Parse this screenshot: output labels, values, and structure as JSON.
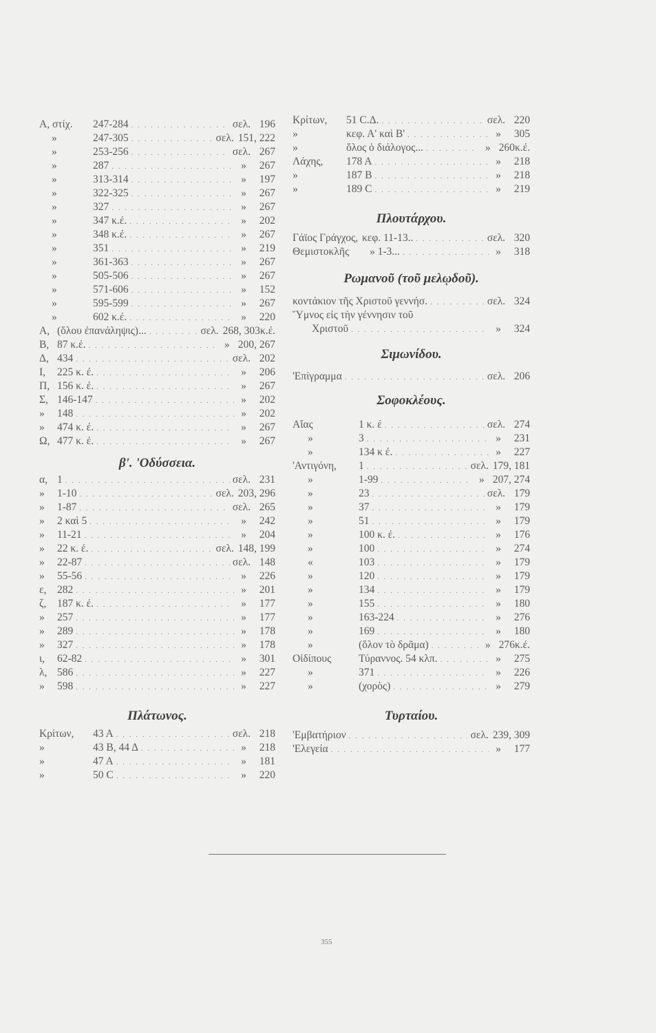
{
  "page_number": "355",
  "left": [
    {
      "heading": "",
      "rows": [
        {
          "p": "Α, στίχ.",
          "t": "247-284",
          "s": "σελ.",
          "n": "196"
        },
        {
          "p": "»",
          "t": "247-305",
          "s": "σελ.",
          "n": "151, 222"
        },
        {
          "p": "»",
          "t": "253-256",
          "s": "σελ.",
          "n": "267"
        },
        {
          "p": "»",
          "t": "287",
          "s": "»",
          "n": "267"
        },
        {
          "p": "»",
          "t": "313-314",
          "s": "»",
          "n": "197"
        },
        {
          "p": "»",
          "t": "322-325",
          "s": "»",
          "n": "267"
        },
        {
          "p": "»",
          "t": "327",
          "s": "»",
          "n": "267"
        },
        {
          "p": "»",
          "t": "347 κ.έ.",
          "s": "»",
          "n": "202"
        },
        {
          "p": "»",
          "t": "348 κ.έ.",
          "s": "»",
          "n": "267"
        },
        {
          "p": "»",
          "t": "351",
          "s": "»",
          "n": "219"
        },
        {
          "p": "»",
          "t": "361-363",
          "s": "»",
          "n": "267"
        },
        {
          "p": "»",
          "t": "505-506",
          "s": "»",
          "n": "267"
        },
        {
          "p": "»",
          "t": "571-606",
          "s": "»",
          "n": "152"
        },
        {
          "p": "»",
          "t": "595-599",
          "s": "»",
          "n": "267"
        },
        {
          "p": "»",
          "t": "602 κ.έ.",
          "s": "»",
          "n": "220"
        }
      ]
    },
    {
      "heading": "",
      "rows": [
        {
          "p": "Α,",
          "t": "(ὅλου ἐπανάληψις)...",
          "s": "σελ.",
          "n": "268, 303κ.έ."
        },
        {
          "p": "Β,",
          "t": "87 κ.έ.",
          "s": "»",
          "n": "200, 267"
        },
        {
          "p": "Δ,",
          "t": "434",
          "s": "σελ.",
          "n": "202"
        },
        {
          "p": "Ι,",
          "t": "225 κ. έ.",
          "s": "»",
          "n": "206"
        },
        {
          "p": "Π,",
          "t": "156 κ. έ.",
          "s": "»",
          "n": "267"
        },
        {
          "p": "Σ,",
          "t": "146-147",
          "s": "»",
          "n": "202"
        },
        {
          "p": "»",
          "t": "148",
          "s": "»",
          "n": "202"
        },
        {
          "p": "»",
          "t": "474 κ. έ.",
          "s": "»",
          "n": "267"
        },
        {
          "p": "Ω,",
          "t": "477 κ. έ.",
          "s": "»",
          "n": "267"
        }
      ]
    },
    {
      "heading": "β'. 'Οδύσσεια.",
      "rows": [
        {
          "p": "α,",
          "t": "1",
          "s": "σελ.",
          "n": "231"
        },
        {
          "p": "»",
          "t": "1-10",
          "s": "σελ.",
          "n": "203, 296"
        },
        {
          "p": "»",
          "t": "1-87",
          "s": "σελ.",
          "n": "265"
        },
        {
          "p": "»",
          "t": "2 καὶ 5",
          "s": "»",
          "n": "242"
        },
        {
          "p": "»",
          "t": "11-21",
          "s": "»",
          "n": "204"
        },
        {
          "p": "»",
          "t": "22 κ. έ.",
          "s": "σελ.",
          "n": "148, 199"
        },
        {
          "p": "»",
          "t": "22-87",
          "s": "σελ.",
          "n": "148"
        },
        {
          "p": "»",
          "t": "55-56",
          "s": "»",
          "n": "226"
        },
        {
          "p": "ε,",
          "t": "282",
          "s": "»",
          "n": "201"
        },
        {
          "p": "ζ,",
          "t": "187 κ. έ.",
          "s": "»",
          "n": "177"
        },
        {
          "p": "»",
          "t": "257",
          "s": "»",
          "n": "177"
        },
        {
          "p": "»",
          "t": "289",
          "s": "»",
          "n": "178"
        },
        {
          "p": "»",
          "t": "327",
          "s": "»",
          "n": "178"
        },
        {
          "p": "ι,",
          "t": "62-82",
          "s": "»",
          "n": "301"
        },
        {
          "p": "λ,",
          "t": "586",
          "s": "»",
          "n": "227"
        },
        {
          "p": "»",
          "t": "598",
          "s": "»",
          "n": "227"
        }
      ]
    },
    {
      "heading": "Πλάτωνος.",
      "rows": [
        {
          "p": "Κρίτων,",
          "t": "43 Α",
          "s": "σελ.",
          "n": "218"
        },
        {
          "p": "»",
          "t": "43 Β, 44 Δ",
          "s": "»",
          "n": "218"
        },
        {
          "p": "»",
          "t": "47 Α",
          "s": "»",
          "n": "181"
        },
        {
          "p": "»",
          "t": "50 C",
          "s": "»",
          "n": "220"
        }
      ]
    }
  ],
  "right": [
    {
      "heading": "",
      "rows": [
        {
          "p": "Κρίτων,",
          "t": "51 C.Δ.",
          "s": "σελ.",
          "n": "220"
        },
        {
          "p": "»",
          "t": "κεφ. Α' καὶ Β'",
          "s": "»",
          "n": "305"
        },
        {
          "p": "»",
          "t": "ὅλος ὁ διάλογος...",
          "s": "»",
          "n": "260κ.έ."
        },
        {
          "p": "Λάχης,",
          "t": "178 Α",
          "s": "»",
          "n": "218"
        },
        {
          "p": "»",
          "t": "187 Β",
          "s": "»",
          "n": "218"
        },
        {
          "p": "»",
          "t": "189 C",
          "s": "»",
          "n": "219"
        }
      ]
    },
    {
      "heading": "Πλουτάρχου.",
      "rows": [
        {
          "p": "Γάϊος Γράγχος,",
          "t": "κεφ. 11-13..",
          "s": "σελ.",
          "n": "320"
        },
        {
          "p": "Θεμιστοκλῆς",
          "t": "» 1-3...",
          "s": "»",
          "n": "318"
        }
      ]
    },
    {
      "heading": "Ρωμανοῦ (τοῦ μελῳδοῦ).",
      "rows": [
        {
          "p": "",
          "t": "κοντάκιον τῆς Χριστοῦ γεννήσ.",
          "s": "σελ.",
          "n": "324"
        },
        {
          "p": "",
          "t": "Ὕμνος εἰς τὴν γέννησιν τοῦ",
          "s": "",
          "n": ""
        },
        {
          "p": "",
          "t": "Χριστοῦ",
          "s": "»",
          "n": "324"
        }
      ]
    },
    {
      "heading": "Σιμωνίδου.",
      "rows": [
        {
          "p": "",
          "t": "'Επίγραμμα",
          "s": "σελ.",
          "n": "206"
        }
      ]
    },
    {
      "heading": "Σοφοκλέους.",
      "rows": [
        {
          "p": "Αἴας",
          "t": "1 κ. έ",
          "s": "σελ.",
          "n": "274"
        },
        {
          "p": "»",
          "t": "3",
          "s": "»",
          "n": "231"
        },
        {
          "p": "»",
          "t": "134 κ έ.",
          "s": "»",
          "n": "227"
        },
        {
          "p": "'Αντιγόνη,",
          "t": "1",
          "s": "σελ.",
          "n": "179, 181"
        },
        {
          "p": "»",
          "t": "1-99",
          "s": "»",
          "n": "207, 274"
        },
        {
          "p": "»",
          "t": "23",
          "s": "σελ.",
          "n": "179"
        },
        {
          "p": "»",
          "t": "37",
          "s": "»",
          "n": "179"
        },
        {
          "p": "»",
          "t": "51",
          "s": "»",
          "n": "179"
        },
        {
          "p": "»",
          "t": "100 κ. έ.",
          "s": "»",
          "n": "176"
        },
        {
          "p": "»",
          "t": "100",
          "s": "»",
          "n": "274"
        },
        {
          "p": "«",
          "t": "103",
          "s": "»",
          "n": "179"
        },
        {
          "p": "»",
          "t": "120",
          "s": "»",
          "n": "179"
        },
        {
          "p": "»",
          "t": "134",
          "s": "»",
          "n": "179"
        },
        {
          "p": "»",
          "t": "155",
          "s": "»",
          "n": "180"
        },
        {
          "p": "»",
          "t": "163-224",
          "s": "»",
          "n": "276"
        },
        {
          "p": "»",
          "t": "169",
          "s": "»",
          "n": "180"
        },
        {
          "p": "»",
          "t": "(ὅλον τὸ δρᾶμα)",
          "s": "»",
          "n": "276κ.έ."
        },
        {
          "p": "Οἰδίπους",
          "t": "Τύραννος. 54 κλπ.",
          "s": "»",
          "n": "275"
        },
        {
          "p": "»",
          "t": "371",
          "s": "»",
          "n": "226"
        },
        {
          "p": "»",
          "t": "(χορὸς)",
          "s": "»",
          "n": "279"
        }
      ]
    },
    {
      "heading": "Τυρταίου.",
      "rows": [
        {
          "p": "",
          "t": "'Εμβατήριον",
          "s": "σελ.",
          "n": "239, 309"
        },
        {
          "p": "",
          "t": "'Ελεγεία",
          "s": "»",
          "n": "177"
        }
      ]
    }
  ]
}
